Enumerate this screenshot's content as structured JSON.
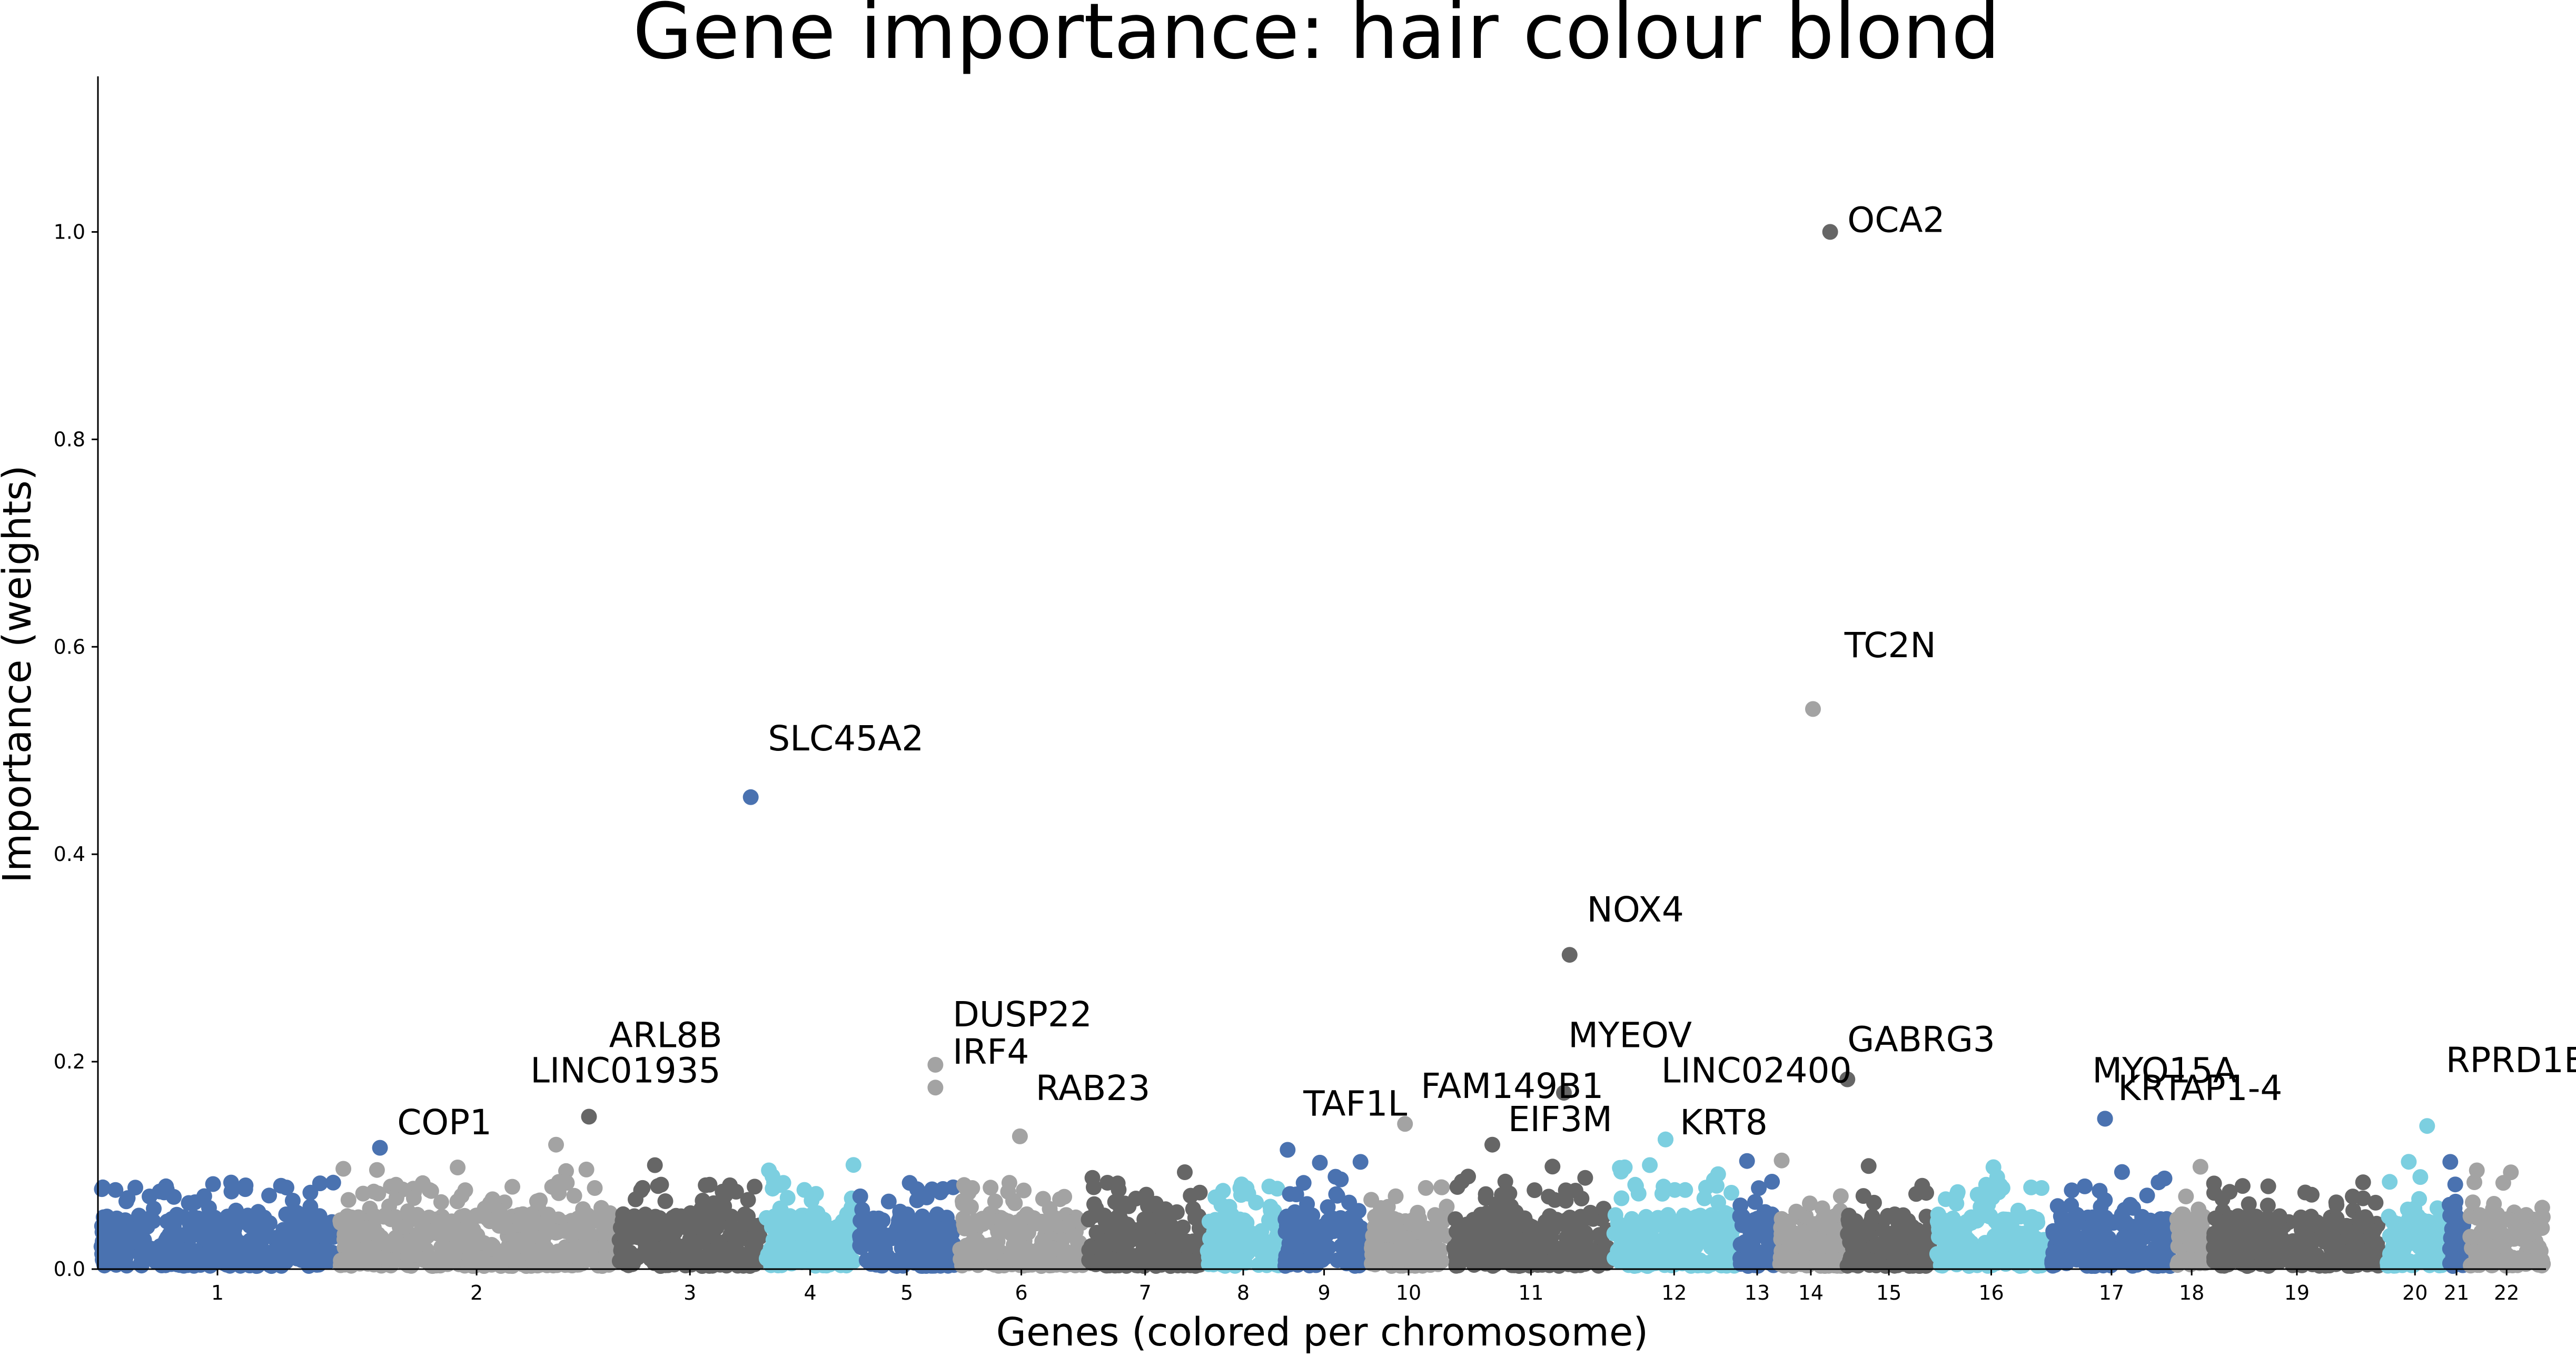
{
  "chart_data": {
    "type": "scatter",
    "title": "Gene importance: hair colour blond",
    "xlabel": "Genes (colored per chromosome)",
    "ylabel": "Importance (weights)",
    "ylim": [
      0,
      1.15
    ],
    "yticks": [
      "0.0",
      "0.2",
      "0.4",
      "0.6",
      "0.8",
      "1.0"
    ],
    "grid": false,
    "legend": "none",
    "colors": [
      "#4a72b0",
      "#a3a3a3",
      "#666666",
      "#7ccfe0",
      "#4a72b0",
      "#a3a3a3",
      "#666666",
      "#7ccfe0",
      "#4a72b0",
      "#a3a3a3",
      "#666666",
      "#7ccfe0",
      "#4a72b0",
      "#a3a3a3",
      "#666666",
      "#7ccfe0",
      "#4a72b0",
      "#a3a3a3",
      "#666666",
      "#7ccfe0",
      "#4a72b0",
      "#a3a3a3"
    ],
    "chromosomes": [
      {
        "name": "1",
        "x": [
          0,
          1.67
        ]
      },
      {
        "name": "2",
        "x": [
          1.67,
          3.62
        ]
      },
      {
        "name": "3",
        "x": [
          3.62,
          4.65
        ]
      },
      {
        "name": "4",
        "x": [
          4.65,
          5.3
        ]
      },
      {
        "name": "5",
        "x": [
          5.3,
          6.0
        ]
      },
      {
        "name": "6",
        "x": [
          6.0,
          6.9
        ]
      },
      {
        "name": "7",
        "x": [
          6.9,
          7.73
        ]
      },
      {
        "name": "8",
        "x": [
          7.73,
          8.27
        ]
      },
      {
        "name": "9",
        "x": [
          8.27,
          8.86
        ]
      },
      {
        "name": "10",
        "x": [
          8.86,
          9.45
        ]
      },
      {
        "name": "11",
        "x": [
          9.45,
          10.57
        ]
      },
      {
        "name": "12",
        "x": [
          10.57,
          11.45
        ]
      },
      {
        "name": "13",
        "x": [
          11.45,
          11.73
        ]
      },
      {
        "name": "14",
        "x": [
          11.73,
          12.2
        ]
      },
      {
        "name": "15",
        "x": [
          12.2,
          12.82
        ]
      },
      {
        "name": "16",
        "x": [
          12.82,
          13.63
        ]
      },
      {
        "name": "17",
        "x": [
          13.63,
          14.5
        ]
      },
      {
        "name": "18",
        "x": [
          14.5,
          14.75
        ]
      },
      {
        "name": "19",
        "x": [
          14.75,
          15.97
        ]
      },
      {
        "name": "20",
        "x": [
          15.97,
          16.4
        ]
      },
      {
        "name": "21",
        "x": [
          16.4,
          16.55
        ]
      },
      {
        "name": "22",
        "x": [
          16.55,
          17.1
        ]
      }
    ],
    "highlighted_genes": [
      {
        "gene": "OCA2",
        "chr": "15",
        "x": 12.1,
        "y": 1.0
      },
      {
        "gene": "TC2N",
        "chr": "14",
        "x": 11.98,
        "y": 0.54
      },
      {
        "gene": "SLC45A2",
        "chr": "5",
        "x": 4.56,
        "y": 0.455
      },
      {
        "gene": "NOX4",
        "chr": "11",
        "x": 10.28,
        "y": 0.303
      },
      {
        "gene": "DUSP22",
        "chr": "6",
        "x": 5.85,
        "y": 0.197
      },
      {
        "gene": "IRF4",
        "chr": "6",
        "x": 5.85,
        "y": 0.175
      },
      {
        "gene": "GABRG3",
        "chr": "15",
        "x": 12.22,
        "y": 0.183
      },
      {
        "gene": "ARL8B",
        "chr": "3",
        "x": 3.43,
        "y": 0.147
      },
      {
        "gene": "LINC01935",
        "chr": "2",
        "x": 3.2,
        "y": 0.12
      },
      {
        "gene": "COP1",
        "chr": "1",
        "x": 1.97,
        "y": 0.117
      },
      {
        "gene": "RAB23",
        "chr": "6",
        "x": 6.44,
        "y": 0.128
      },
      {
        "gene": "TAF1L",
        "chr": "9",
        "x": 8.31,
        "y": 0.115
      },
      {
        "gene": "FAM149B1",
        "chr": "10",
        "x": 9.13,
        "y": 0.14
      },
      {
        "gene": "EIF3M",
        "chr": "11",
        "x": 9.74,
        "y": 0.12
      },
      {
        "gene": "MYEOV",
        "chr": "11",
        "x": 10.24,
        "y": 0.17
      },
      {
        "gene": "LINC02400",
        "chr": "12",
        "x": 10.95,
        "y": 0.125
      },
      {
        "gene": "KRT8",
        "chr": "12",
        "x": 10.95,
        "y": 0.125
      },
      {
        "gene": "MYO15A",
        "chr": "17",
        "x": 14.02,
        "y": 0.145
      },
      {
        "gene": "KRTAP1-4",
        "chr": "17",
        "x": 14.02,
        "y": 0.145
      },
      {
        "gene": "RPRD1B",
        "chr": "20",
        "x": 16.27,
        "y": 0.138
      }
    ],
    "labels": [
      {
        "text": "OCA2",
        "x": 12.22,
        "y": 1.0
      },
      {
        "text": "TC2N",
        "x": 12.2,
        "y": 0.59
      },
      {
        "text": "SLC45A2",
        "x": 4.68,
        "y": 0.5
      },
      {
        "text": "NOX4",
        "x": 10.4,
        "y": 0.335
      },
      {
        "text": "DUSP22",
        "x": 5.97,
        "y": 0.234
      },
      {
        "text": "IRF4",
        "x": 5.97,
        "y": 0.198
      },
      {
        "text": "GABRG3",
        "x": 12.22,
        "y": 0.21
      },
      {
        "text": "ARL8B",
        "x": 3.57,
        "y": 0.214
      },
      {
        "text": "LINC01935",
        "x": 3.02,
        "y": 0.18
      },
      {
        "text": "COP1",
        "x": 2.09,
        "y": 0.13
      },
      {
        "text": "RAB23",
        "x": 6.55,
        "y": 0.163
      },
      {
        "text": "TAF1L",
        "x": 8.42,
        "y": 0.148
      },
      {
        "text": "FAM149B1",
        "x": 9.24,
        "y": 0.165
      },
      {
        "text": "EIF3M",
        "x": 9.85,
        "y": 0.133
      },
      {
        "text": "MYEOV",
        "x": 10.27,
        "y": 0.214
      },
      {
        "text": "LINC02400",
        "x": 10.92,
        "y": 0.18
      },
      {
        "text": "KRT8",
        "x": 11.05,
        "y": 0.13
      },
      {
        "text": "MYO15A",
        "x": 13.93,
        "y": 0.18
      },
      {
        "text": "KRTAP1-4",
        "x": 14.11,
        "y": 0.163
      },
      {
        "text": "RPRD1B",
        "x": 16.4,
        "y": 0.19
      }
    ]
  }
}
